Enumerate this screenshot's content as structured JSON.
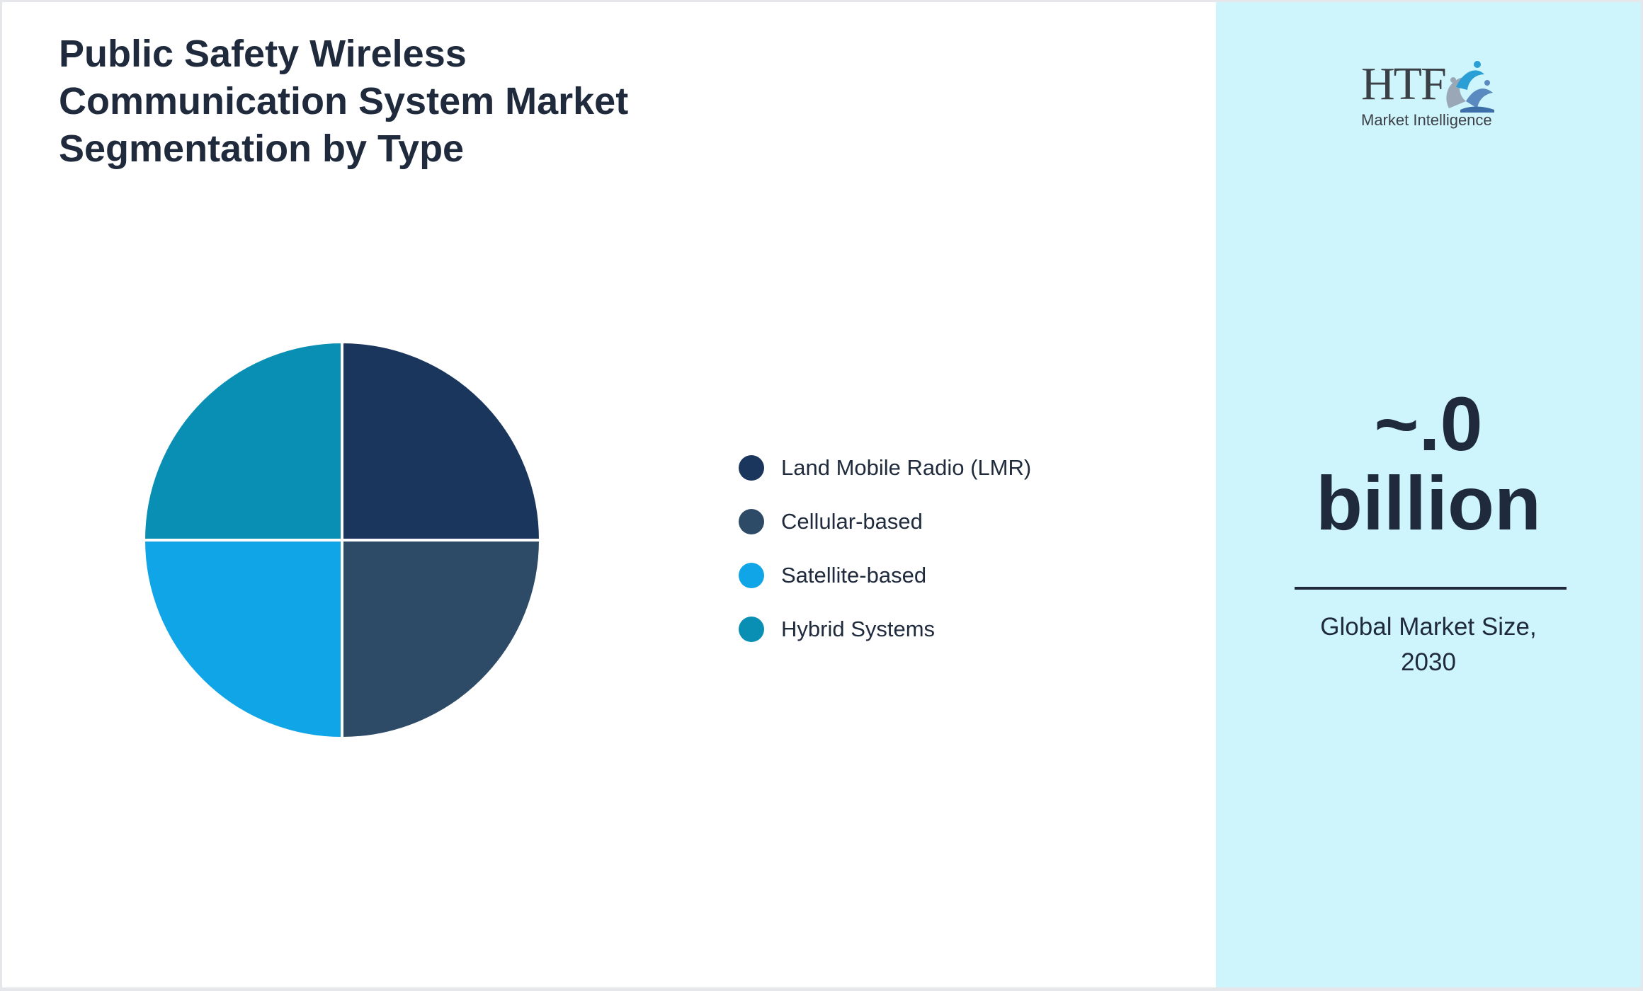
{
  "chart_data": {
    "type": "pie",
    "title": [
      "Public Safety Wireless",
      "Communication System Market",
      "Segmentation by Type"
    ],
    "categories": [
      "Land Mobile Radio (LMR)",
      "Cellular-based",
      "Satellite-based",
      "Hybrid Systems"
    ],
    "values": [
      25,
      25,
      25,
      25
    ],
    "colors": [
      "#1b365d",
      "#2d4a66",
      "#10a5e6",
      "#088fb3"
    ],
    "legend_position": "right",
    "start_angle_deg": 0,
    "direction": "clockwise"
  },
  "sidebar": {
    "background": "#cff5fc",
    "logo": {
      "mark": "HTF",
      "subtitle": "Market Intelligence",
      "art_icon": "dolphin-figures-icon"
    },
    "value_lines": [
      "~.0",
      "billion"
    ],
    "caption_lines": [
      "Global Market Size,",
      "2030"
    ]
  }
}
